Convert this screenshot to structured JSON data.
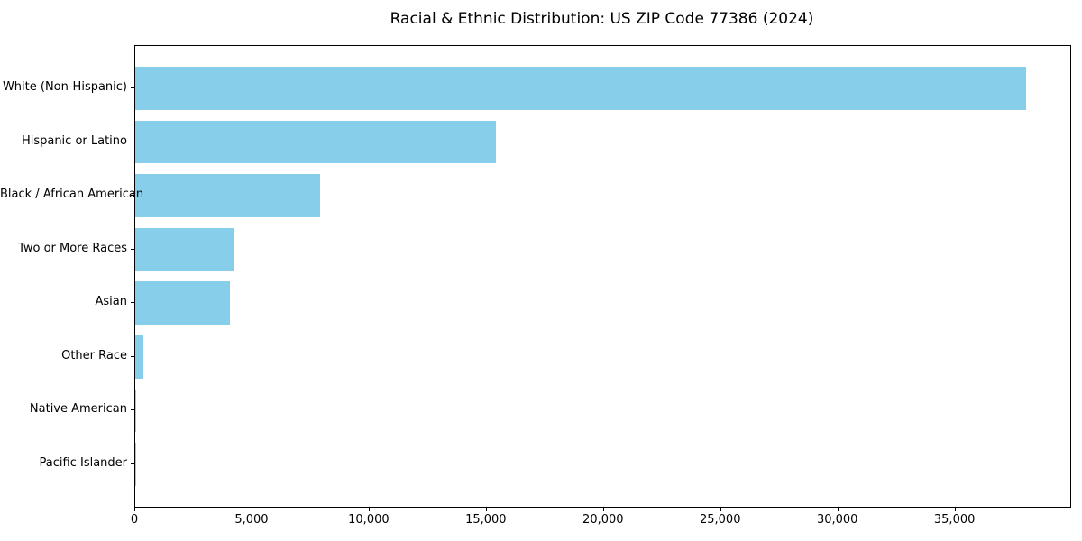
{
  "chart_data": {
    "type": "bar",
    "orientation": "horizontal",
    "title": "Racial & Ethnic Distribution: US ZIP Code 77386 (2024)",
    "categories": [
      "White (Non-Hispanic)",
      "Hispanic or Latino",
      "Black / African American",
      "Two or More Races",
      "Asian",
      "Other Race",
      "Native American",
      "Pacific Islander"
    ],
    "values": [
      38000,
      15400,
      7870,
      4200,
      4040,
      360,
      40,
      12
    ],
    "xlabel": "",
    "ylabel": "",
    "xlim": [
      0,
      39900
    ],
    "x_ticks": [
      0,
      5000,
      10000,
      15000,
      20000,
      25000,
      30000,
      35000
    ],
    "x_tick_labels": [
      "0",
      "5,000",
      "10,000",
      "15,000",
      "20,000",
      "25,000",
      "30,000",
      "35,000"
    ],
    "bar_color": "#87CEEB",
    "background": "#FFFFFF",
    "text_color": "#000000",
    "grid": false,
    "legend": "none"
  }
}
